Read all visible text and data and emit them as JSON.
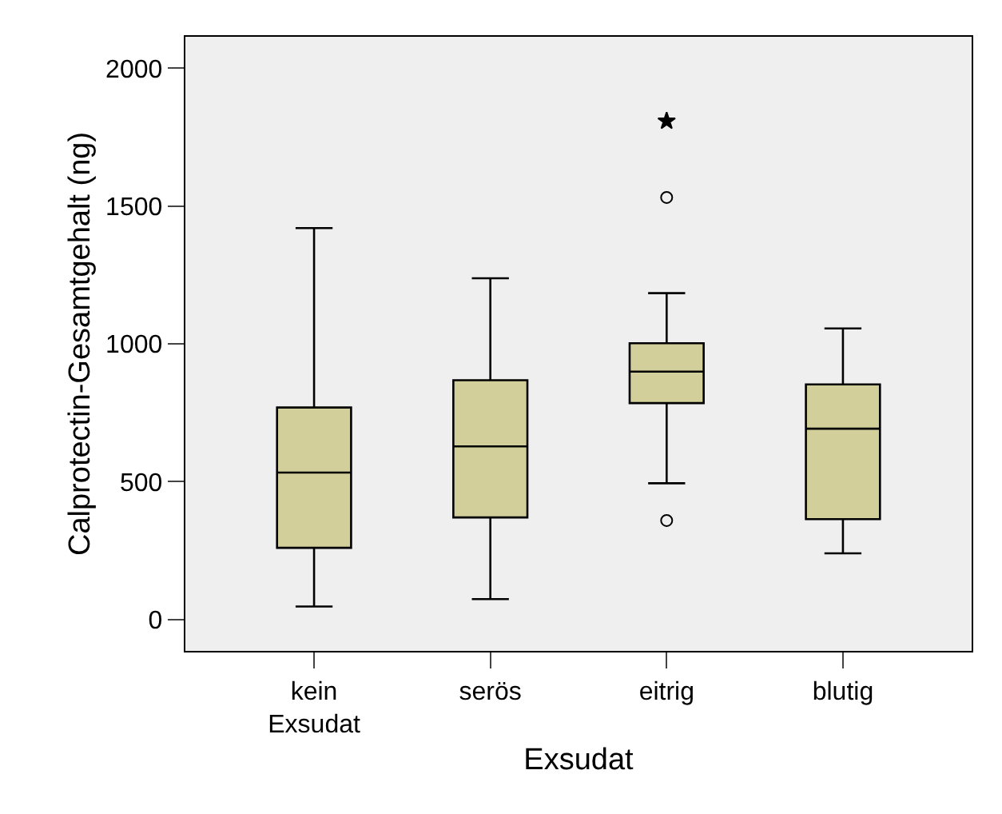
{
  "chart_data": {
    "type": "box",
    "xlabel": "Exsudat",
    "ylabel": "Calprotectin-Gesamtgehalt (ng)",
    "categories": [
      "kein\nExsudat",
      "serös",
      "eitrig",
      "blutig"
    ],
    "ylim": [
      -114,
      2114
    ],
    "yticks": [
      0,
      500,
      1000,
      1500,
      2000
    ],
    "grid": false,
    "series": [
      {
        "color": "#d3cf9a",
        "boxes": [
          {
            "low": 47,
            "q1": 260,
            "median": 533,
            "q3": 769,
            "high": 1420
          },
          {
            "low": 74,
            "q1": 370,
            "median": 628,
            "q3": 868,
            "high": 1238
          },
          {
            "low": 494,
            "q1": 785,
            "median": 899,
            "q3": 1002,
            "high": 1184,
            "outliers": [
              1531,
              359
            ]
          },
          {
            "low": 240,
            "q1": 364,
            "median": 692,
            "q3": 853,
            "high": 1056
          }
        ]
      },
      {
        "type": "scatter",
        "color": "#000000",
        "marker": "star",
        "x": [
          "eitrig"
        ],
        "values": [
          1808
        ]
      }
    ]
  }
}
